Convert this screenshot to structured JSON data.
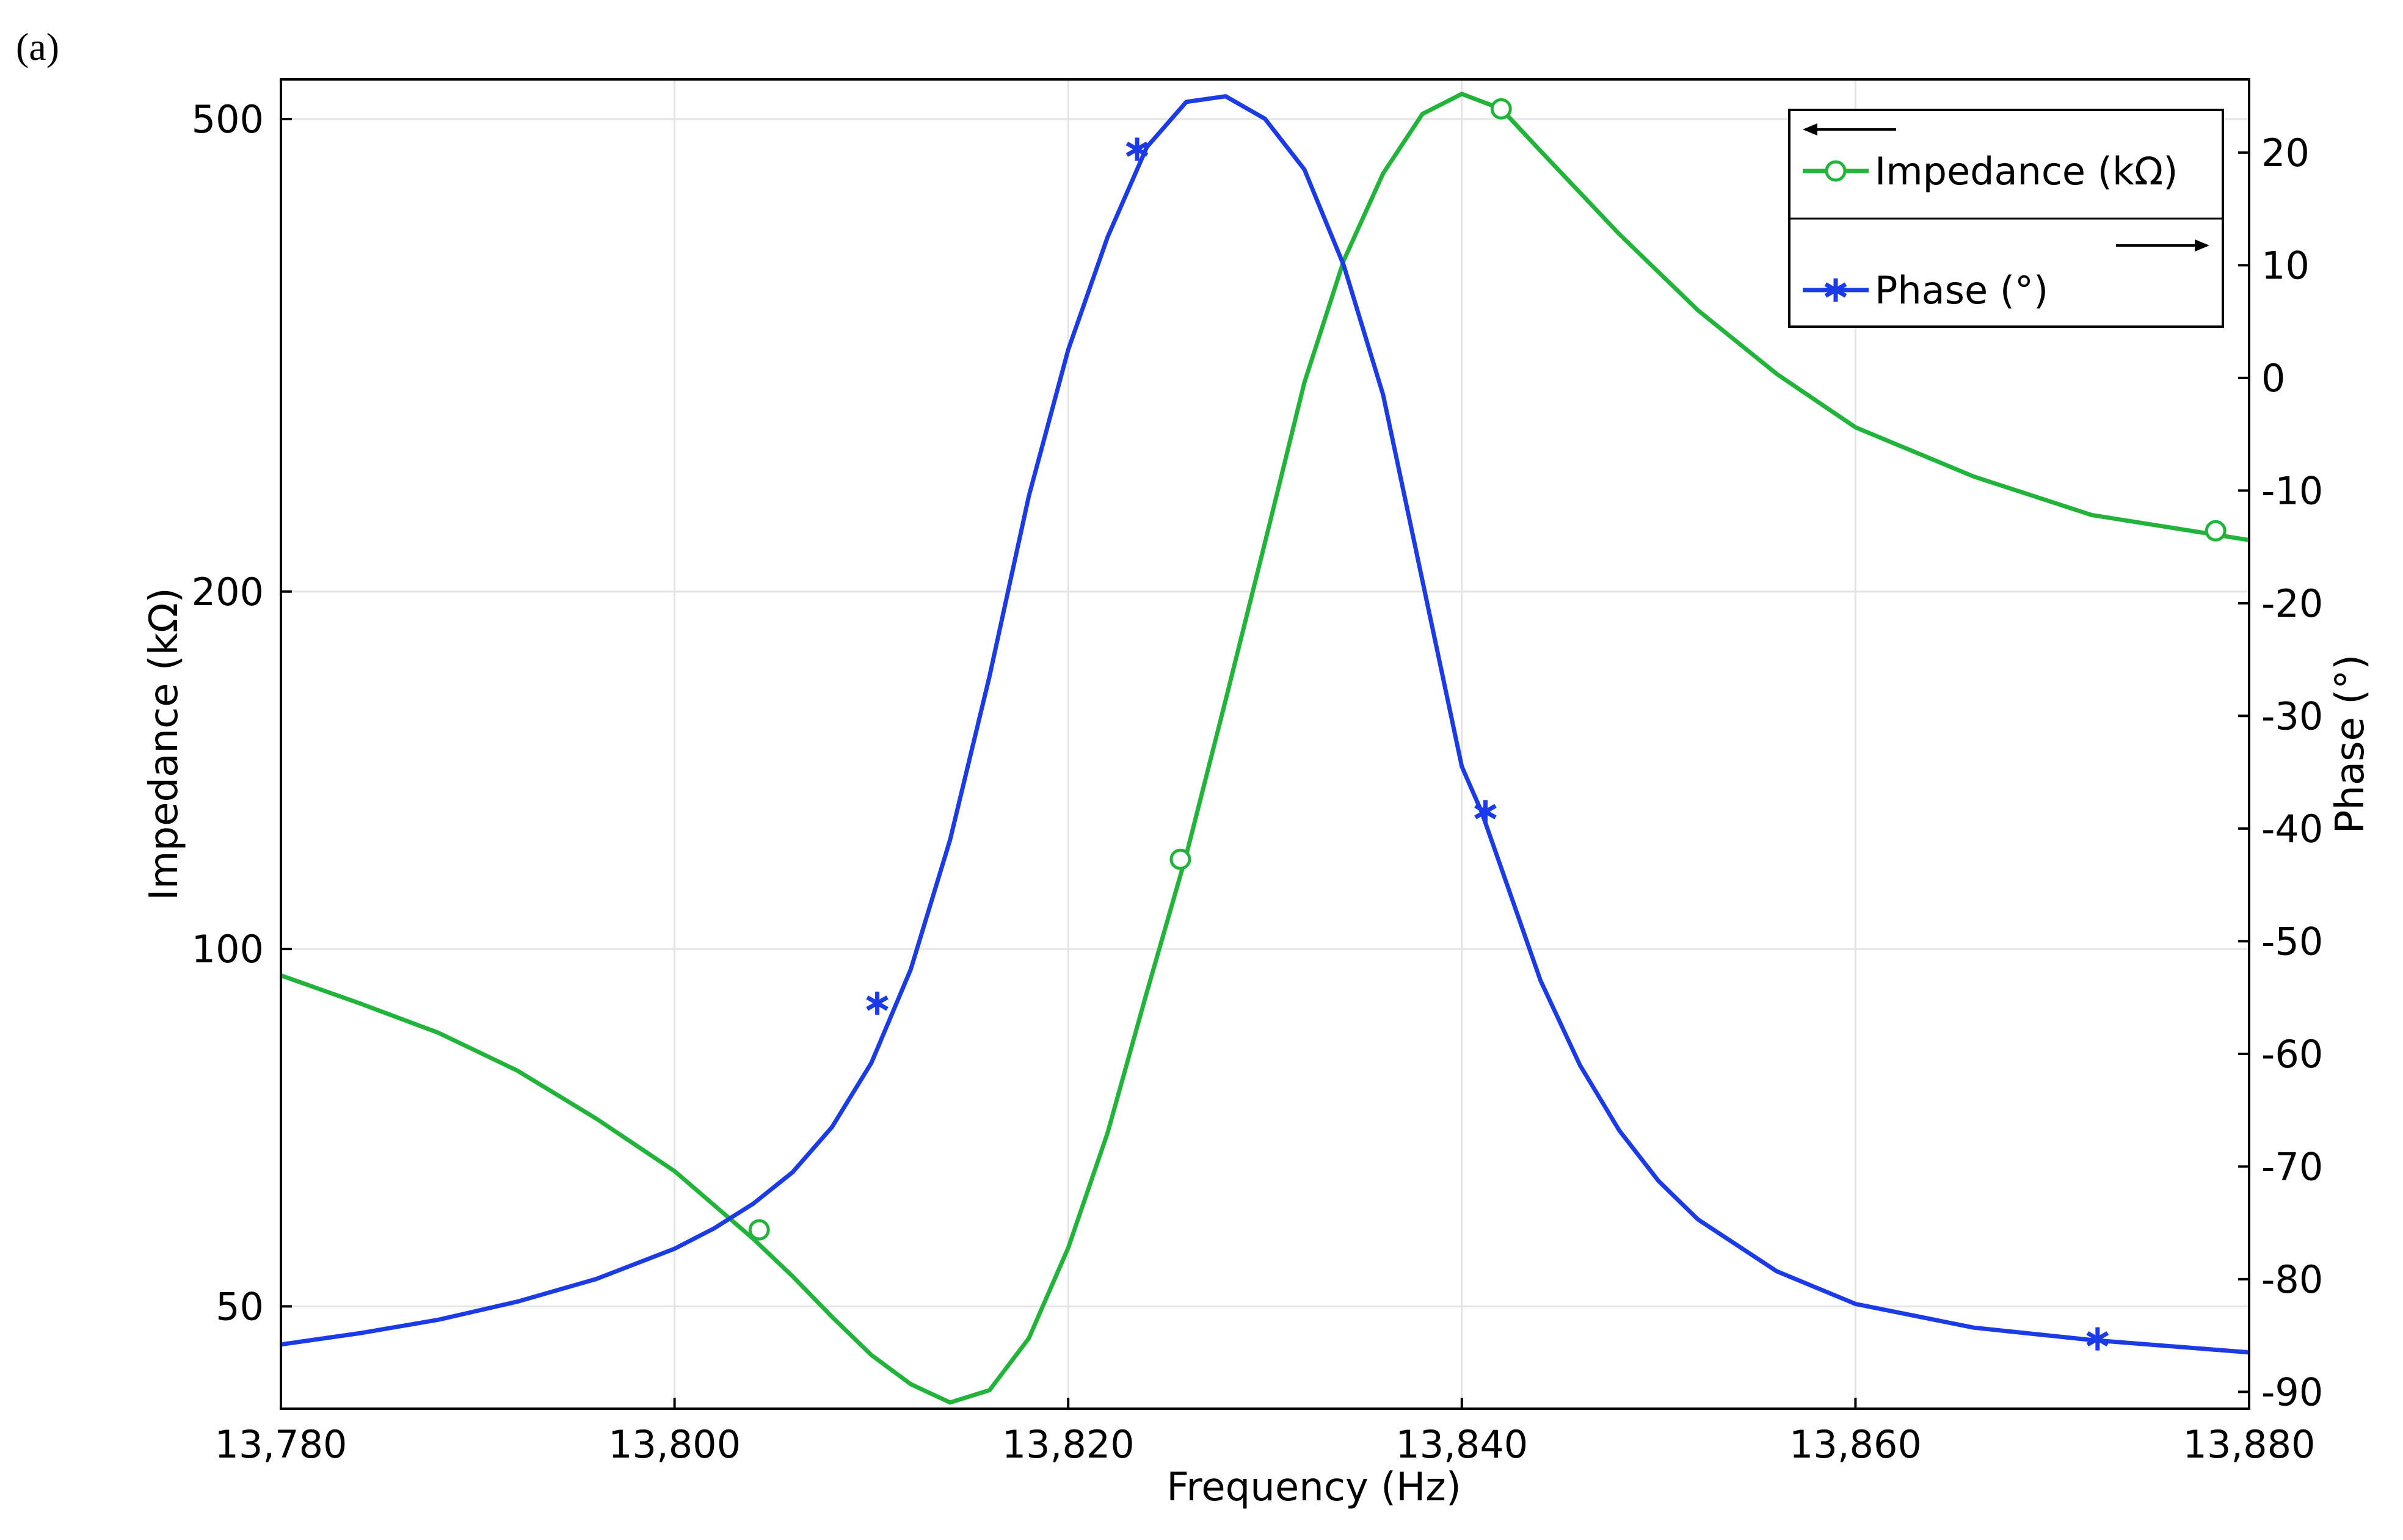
{
  "panel_label": "(a)",
  "chart_data": {
    "type": "line",
    "xlabel": "Frequency (Hz)",
    "ylabel_left": "Impedance (kΩ)",
    "ylabel_right": "Phase (°)",
    "xlim": [
      13780,
      13880
    ],
    "ylim_left": [
      41,
      540
    ],
    "yscale_left": "log",
    "ylim_right": [
      -91.5,
      26.5
    ],
    "x_ticks": [
      13780,
      13800,
      13820,
      13840,
      13860,
      13880
    ],
    "x_tick_labels": [
      "13,780",
      "13,800",
      "13,820",
      "13,840",
      "13,860",
      "13,880"
    ],
    "y_left_ticks": [
      50,
      100,
      200,
      500
    ],
    "y_left_tick_labels": [
      "50",
      "100",
      "200",
      "500"
    ],
    "y_right_ticks": [
      20,
      10,
      0,
      -10,
      -20,
      -30,
      -40,
      -50,
      -60,
      -70,
      -80,
      -90
    ],
    "y_right_tick_labels": [
      "20",
      "10",
      "0",
      "-10",
      "-20",
      "-30",
      "-40",
      "-50",
      "-60",
      "-70",
      "-80",
      "-90"
    ],
    "grid": true,
    "legend_position": "top-right",
    "series": [
      {
        "name": "Impedance (kΩ)",
        "axis": "left",
        "color": "#22b33a",
        "marker": "circle",
        "x": [
          13780,
          13784,
          13788,
          13792,
          13796,
          13800,
          13804,
          13806,
          13808,
          13810,
          13812,
          13814,
          13816,
          13818,
          13820,
          13822,
          13824,
          13826,
          13828,
          13830,
          13832,
          13834,
          13836,
          13838,
          13840,
          13842,
          13844,
          13848,
          13852,
          13856,
          13860,
          13866,
          13872,
          13880
        ],
        "y": [
          95,
          90,
          85,
          79,
          72,
          65,
          57,
          53,
          49,
          45.5,
          43,
          41.5,
          42.5,
          47,
          56,
          70,
          92,
          120,
          162,
          220,
          300,
          380,
          450,
          505,
          525,
          510,
          470,
          400,
          345,
          305,
          275,
          250,
          232,
          221
        ],
        "marker_points": [
          [
            13804.3,
            58
          ],
          [
            13825.7,
            119
          ],
          [
            13842,
            510
          ],
          [
            13878.3,
            225
          ]
        ]
      },
      {
        "name": "Phase (°)",
        "axis": "right",
        "color": "#1a3be6",
        "marker": "asterisk",
        "x": [
          13780,
          13784,
          13788,
          13792,
          13796,
          13800,
          13802,
          13804,
          13806,
          13808,
          13810,
          13812,
          13814,
          13816,
          13818,
          13820,
          13822,
          13823.5,
          13824,
          13826,
          13828,
          13830,
          13832,
          13834,
          13836,
          13838,
          13840,
          13841,
          13842,
          13844,
          13846,
          13848,
          13850,
          13852,
          13856,
          13860,
          13866,
          13872,
          13880
        ],
        "y": [
          -85.8,
          -84.8,
          -83.6,
          -82,
          -80,
          -77.3,
          -75.5,
          -73.3,
          -70.5,
          -66.5,
          -60.8,
          -52.5,
          -41,
          -26.5,
          -10.5,
          2.5,
          12.5,
          18.5,
          20.5,
          24.5,
          25,
          23,
          18.5,
          10,
          -1.5,
          -18,
          -34.5,
          -38.5,
          -43.5,
          -53.5,
          -61,
          -66.8,
          -71.3,
          -74.7,
          -79.3,
          -82.2,
          -84.3,
          -85.4,
          -86.5
        ],
        "marker_points": [
          [
            13810.3,
            -55.5
          ],
          [
            13823.5,
            20.3
          ],
          [
            13841.2,
            -38.5
          ],
          [
            13872.3,
            -85.3
          ]
        ]
      }
    ],
    "legend": {
      "entries": [
        "Impedance (kΩ)",
        "Phase (°)"
      ]
    }
  }
}
